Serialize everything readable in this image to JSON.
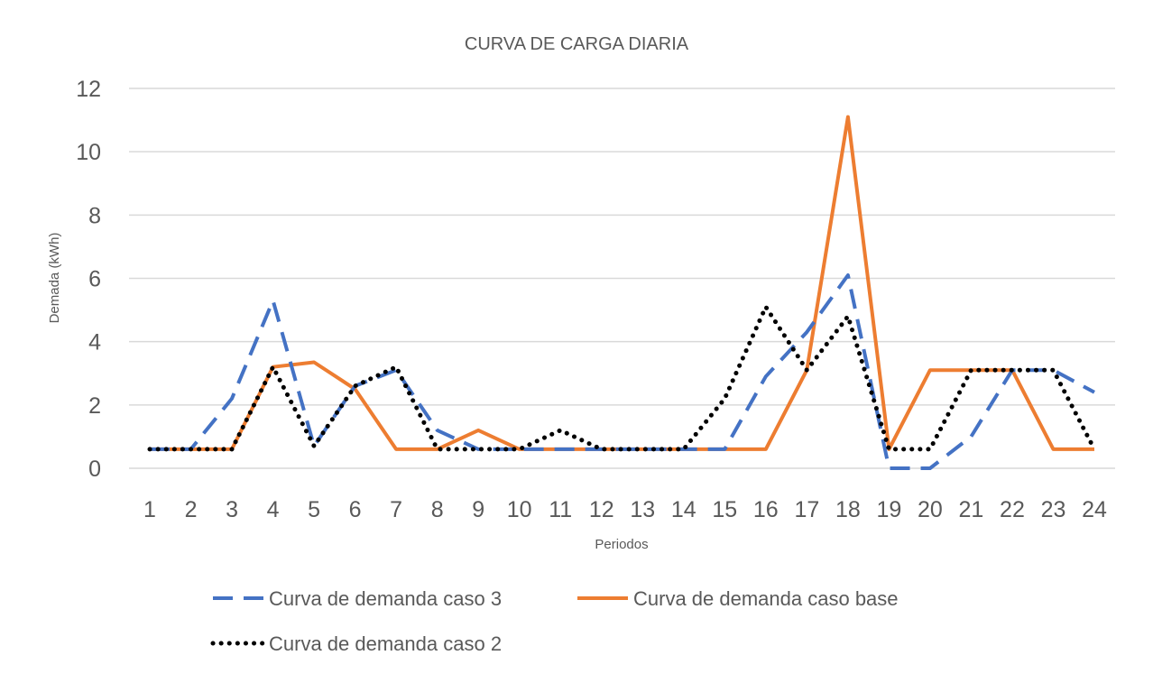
{
  "chart_data": {
    "type": "line",
    "title": "CURVA DE CARGA DIARIA",
    "xlabel": "Periodos",
    "ylabel": "Demada (kWh)",
    "ylim": [
      0,
      12
    ],
    "yticks": [
      0,
      2,
      4,
      6,
      8,
      10,
      12
    ],
    "grid": true,
    "legend_position": "bottom",
    "categories": [
      "1",
      "2",
      "3",
      "4",
      "5",
      "6",
      "7",
      "8",
      "9",
      "10",
      "11",
      "12",
      "13",
      "14",
      "15",
      "16",
      "17",
      "18",
      "19",
      "20",
      "21",
      "22",
      "23",
      "24"
    ],
    "series": [
      {
        "name": "Curva de demanda caso 3",
        "color": "#4472C4",
        "style": "dashed",
        "values": [
          0.6,
          0.6,
          2.2,
          5.3,
          0.7,
          2.6,
          3.1,
          1.2,
          0.6,
          0.6,
          0.6,
          0.6,
          0.6,
          0.6,
          0.6,
          2.9,
          4.3,
          6.1,
          0,
          0,
          1.0,
          3.1,
          3.1,
          2.4
        ]
      },
      {
        "name": "Curva de demanda caso base",
        "color": "#ED7D31",
        "style": "solid",
        "values": [
          0.6,
          0.6,
          0.6,
          3.2,
          3.35,
          2.5,
          0.6,
          0.6,
          1.2,
          0.6,
          0.6,
          0.6,
          0.6,
          0.6,
          0.6,
          0.6,
          3.1,
          11.1,
          0.6,
          3.1,
          3.1,
          3.1,
          0.6,
          0.6
        ]
      },
      {
        "name": "Curva de demanda caso 2",
        "color": "#000000",
        "style": "dotted",
        "values": [
          0.6,
          0.6,
          0.6,
          3.2,
          0.7,
          2.6,
          3.2,
          0.6,
          0.6,
          0.6,
          1.2,
          0.6,
          0.6,
          0.6,
          2.2,
          5.1,
          3.1,
          4.8,
          0.6,
          0.6,
          3.1,
          3.1,
          3.1,
          0.6
        ]
      }
    ]
  }
}
